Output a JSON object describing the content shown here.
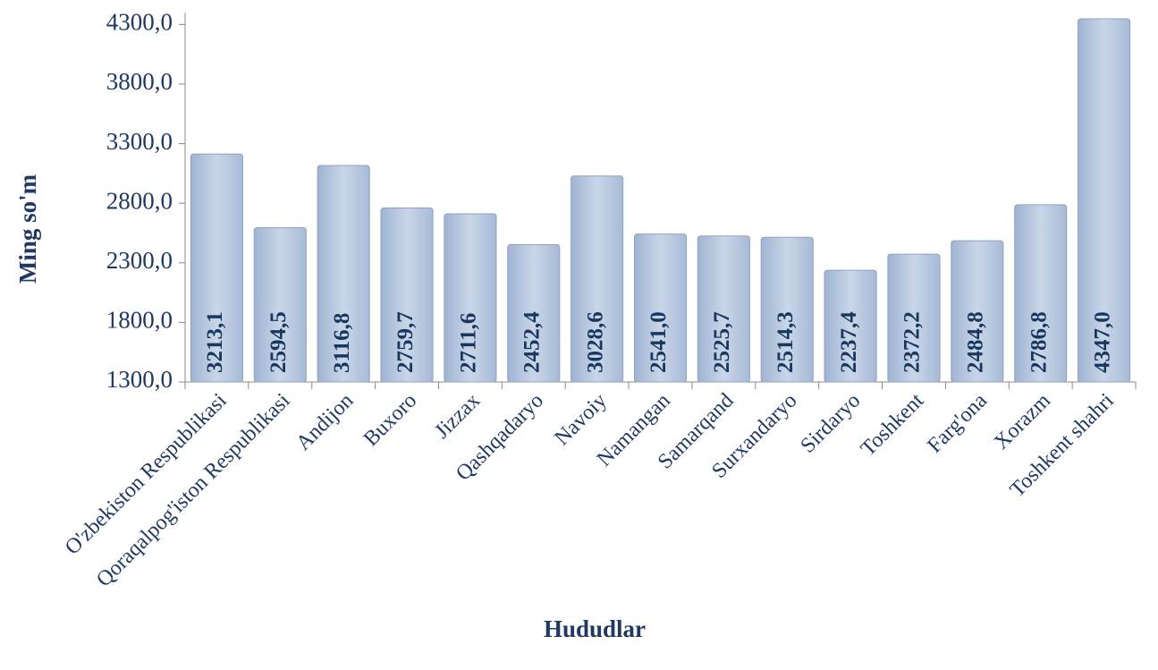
{
  "chart_data": {
    "type": "bar",
    "x_label": "Hududlar",
    "y_label": "Ming so'm",
    "categories": [
      "O'zbekiston Respublikasi",
      "Qoraqalpog'iston Respublikasi",
      "Andijon",
      "Buxoro",
      "Jizzax",
      "Qashqadaryo",
      "Navoiy",
      "Namangan",
      "Samarqand",
      "Surxandaryo",
      "Sirdaryo",
      "Toshkent",
      "Farg'ona",
      "Xorazm",
      "Toshkent shahri"
    ],
    "values": [
      3213.1,
      2594.5,
      3116.8,
      2759.7,
      2711.6,
      2452.4,
      3028.6,
      2541.0,
      2525.7,
      2514.3,
      2237.4,
      2372.2,
      2484.8,
      2786.8,
      4347.0
    ],
    "value_labels": [
      "3213,1",
      "2594,5",
      "3116,8",
      "2759,7",
      "2711,6",
      "2452,4",
      "3028,6",
      "2541,0",
      "2525,7",
      "2514,3",
      "2237,4",
      "2372,2",
      "2484,8",
      "2786,8",
      "4347,0"
    ],
    "color": "#b3c4dc",
    "ylim": [
      1300,
      4400
    ],
    "yticks": [
      {
        "value": 1300,
        "label": "1300,0"
      },
      {
        "value": 1800,
        "label": "1800,0"
      },
      {
        "value": 2300,
        "label": "2300,0"
      },
      {
        "value": 2800,
        "label": "2800,0"
      },
      {
        "value": 3300,
        "label": "3300,0"
      },
      {
        "value": 3800,
        "label": "3800,0"
      },
      {
        "value": 4300,
        "label": "4300,0"
      }
    ]
  }
}
